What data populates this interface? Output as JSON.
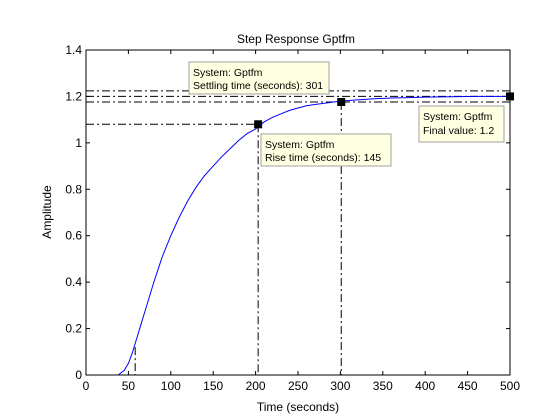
{
  "chart_data": {
    "type": "line",
    "title": "Step Response Gptfm",
    "xlabel": "Time (seconds)",
    "ylabel": "Amplitude",
    "xlim": [
      0,
      500
    ],
    "ylim": [
      0,
      1.4
    ],
    "xticks": [
      0,
      50,
      100,
      150,
      200,
      250,
      300,
      350,
      400,
      450,
      500
    ],
    "yticks": [
      0,
      0.2,
      0.4,
      0.6,
      0.8,
      1,
      1.2,
      1.4
    ],
    "xtick_labels": [
      "0",
      "50",
      "100",
      "150",
      "200",
      "250",
      "300",
      "350",
      "400",
      "450",
      "500"
    ],
    "ytick_labels": [
      "0",
      "0.2",
      "0.4",
      "0.6",
      "0.8",
      "1",
      "1.2",
      "1.4"
    ],
    "grid": false,
    "line_color": "#0000ff",
    "series": [
      {
        "x": [
          0,
          38,
          45,
          50,
          55,
          60,
          65,
          70,
          80,
          90,
          100,
          110,
          120,
          130,
          140,
          150,
          160,
          170,
          180,
          190,
          200,
          210,
          220,
          230,
          240,
          250,
          260,
          270,
          280,
          290,
          300,
          320,
          340,
          360,
          380,
          400,
          420,
          440,
          460,
          480,
          500
        ],
        "y": [
          0,
          0,
          0.02,
          0.05,
          0.1,
          0.16,
          0.22,
          0.28,
          0.4,
          0.51,
          0.6,
          0.68,
          0.75,
          0.81,
          0.86,
          0.9,
          0.94,
          0.975,
          1.01,
          1.04,
          1.06,
          1.09,
          1.11,
          1.125,
          1.14,
          1.15,
          1.16,
          1.165,
          1.17,
          1.175,
          1.18,
          1.185,
          1.19,
          1.193,
          1.195,
          1.197,
          1.198,
          1.199,
          1.2,
          1.2,
          1.2
        ]
      }
    ],
    "reference_lines": {
      "rise_start": {
        "x": 58,
        "y": 0.12
      },
      "rise_end": {
        "x": 203,
        "y": 1.08
      },
      "settling": {
        "x": 301,
        "y": 1.176
      },
      "settling_band_upper": 1.224,
      "settling_band_lower": 1.176,
      "final_value": 1.2
    },
    "markers": [
      {
        "name": "rise",
        "x": 203,
        "y": 1.08
      },
      {
        "name": "settling",
        "x": 301,
        "y": 1.176
      },
      {
        "name": "final",
        "x": 500,
        "y": 1.2
      }
    ],
    "annotations": [
      {
        "id": "settling",
        "line1": "System: Gptfm",
        "line2": "Settling time (seconds): 301"
      },
      {
        "id": "rise",
        "line1": "System: Gptfm",
        "line2": "Rise time (seconds): 145"
      },
      {
        "id": "final",
        "line1": "System: Gptfm",
        "line2": "Final value: 1.2"
      }
    ],
    "tooltip_bg": "#ffffe1"
  }
}
